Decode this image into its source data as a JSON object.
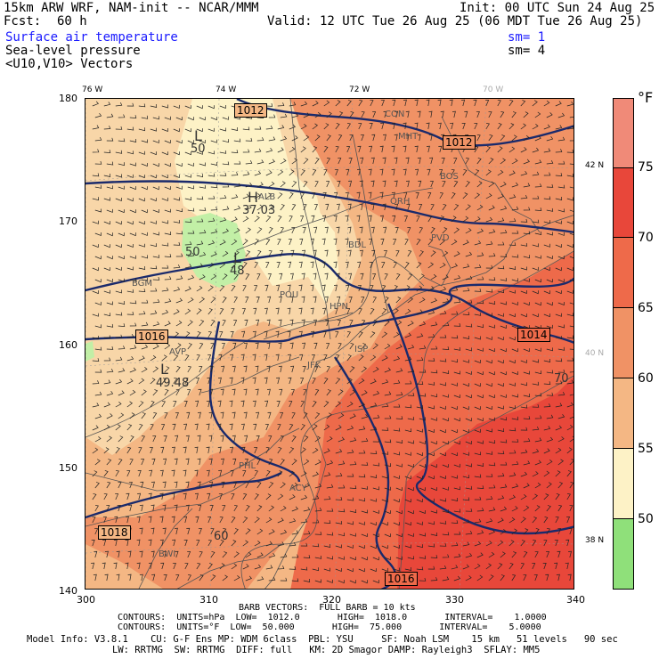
{
  "header": {
    "model": "15km ARW WRF, NAM-init -- NCAR/MMM",
    "fcst_label": "Fcst:",
    "fcst_value": "60 h",
    "init": "Init: 00 UTC Sun 24 Aug 25",
    "valid": "Valid: 12 UTC Tue 26 Aug 25 (06 MDT Tue 26 Aug 25)"
  },
  "fields": [
    {
      "label": "Surface air temperature",
      "sm": "sm= 1"
    },
    {
      "label": "Sea-level pressure",
      "sm": "sm= 4"
    },
    {
      "label": "<U10,V10> Vectors",
      "sm": ""
    }
  ],
  "axes": {
    "top_lon": [
      "76 W",
      "74 W",
      "72 W",
      "70 W"
    ],
    "left": [
      "180",
      "170",
      "160",
      "150",
      "140"
    ],
    "bottom": [
      "300",
      "310",
      "320",
      "330",
      "340"
    ],
    "right_lat": [
      "42 N",
      "40 N",
      "38 N"
    ]
  },
  "colorbar": {
    "unit": "°F",
    "labels": [
      "75",
      "70",
      "65",
      "60",
      "55",
      "50"
    ],
    "colors": [
      "#f08a78",
      "#e8473a",
      "#ee6a4a",
      "#f09265",
      "#f4b784",
      "#f8d6a8",
      "#fdf2c6",
      "#c2efa6",
      "#8fe07a"
    ]
  },
  "map": {
    "isobar_labels": [
      "1012",
      "1012",
      "1016",
      "1014",
      "1018",
      "1016"
    ],
    "pressure_centers": [
      {
        "sym": "L",
        "val": "50"
      },
      {
        "sym": "H",
        "val": "37.03"
      },
      {
        "sym": "L",
        "val": "48"
      },
      {
        "sym": "L",
        "val": "49.48"
      }
    ],
    "temp_labels": [
      "50",
      "60",
      "70"
    ],
    "stations": [
      "CON",
      "MHT",
      "BOS",
      "ALB",
      "ORH",
      "PVD",
      "BDL",
      "BGM",
      "POU",
      "HPN",
      "AVP",
      "ISP",
      "JFK",
      "PHL",
      "ACY",
      "BWI"
    ]
  },
  "footer": {
    "barb": "BARB VECTORS:  FULL BARB = 10 kts",
    "contours1": "CONTOURS:  UNITS=hPa  LOW=  1012.0       HIGH=  1018.0       INTERVAL=    1.0000",
    "contours2": "CONTOURS:  UNITS=°F  LOW=  50.000       HIGH=  75.000       INTERVAL=    5.0000",
    "model1": "Model Info: V3.8.1    CU: G-F Ens MP: WDM 6class  PBL: YSU     SF: Noah LSM    15 km   51 levels   90 sec",
    "model2": "LW: RRTMG  SW: RRTMG  DIFF: full   KM: 2D Smagor DAMP: Rayleigh3  SFLAY: MM5"
  }
}
